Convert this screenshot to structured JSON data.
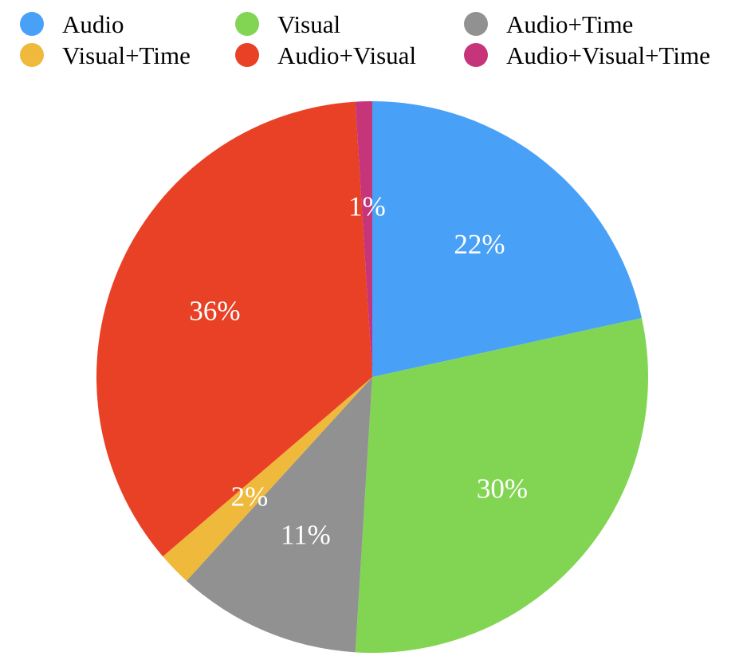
{
  "chart_data": {
    "type": "pie",
    "title": "",
    "categories": [
      "Audio",
      "Visual",
      "Audio+Time",
      "Visual+Time",
      "Audio+Visual",
      "Audio+Visual+Time"
    ],
    "values": [
      22,
      30,
      11,
      2,
      36,
      1
    ],
    "labels": [
      "22%",
      "30%",
      "11%",
      "2%",
      "36%",
      "1%"
    ],
    "colors": [
      "#48a1f7",
      "#82d552",
      "#919191",
      "#efb93c",
      "#e84125",
      "#c6357a"
    ],
    "start_angle_deg": 0,
    "direction": "clockwise",
    "legend": {
      "placement": "top",
      "columns": 3,
      "items": [
        {
          "label": "Audio",
          "color": "#48a1f7"
        },
        {
          "label": "Visual",
          "color": "#82d552"
        },
        {
          "label": "Audio+Time",
          "color": "#919191"
        },
        {
          "label": "Visual+Time",
          "color": "#efb93c"
        },
        {
          "label": "Audio+Visual",
          "color": "#e84125"
        },
        {
          "label": "Audio+Visual+Time",
          "color": "#c6357a"
        }
      ]
    }
  }
}
